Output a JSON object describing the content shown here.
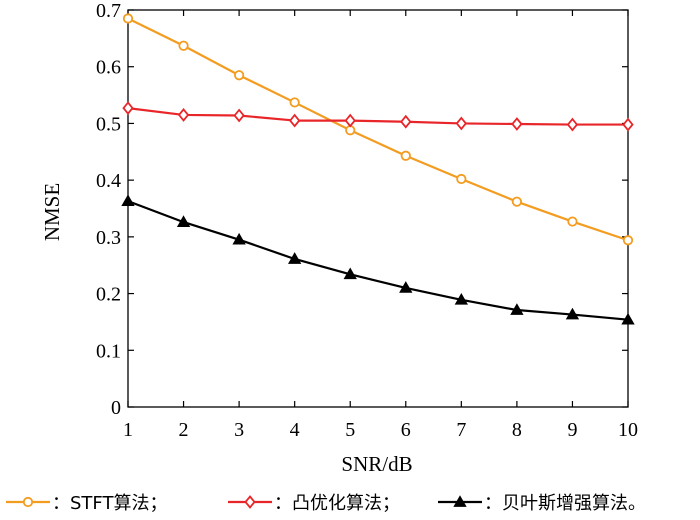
{
  "chart_data": {
    "type": "line",
    "title": "",
    "xlabel": "SNR/dB",
    "ylabel": "NMSE",
    "xlim": [
      1,
      10
    ],
    "ylim": [
      0,
      0.7
    ],
    "x_ticks": [
      1,
      2,
      3,
      4,
      5,
      6,
      7,
      8,
      9,
      10
    ],
    "y_ticks": [
      0,
      0.1,
      0.2,
      0.3,
      0.4,
      0.5,
      0.6,
      0.7
    ],
    "y_tick_labels": [
      "0",
      "0.1",
      "0.2",
      "0.3",
      "0.4",
      "0.5",
      "0.6",
      "0.7"
    ],
    "grid": false,
    "legend_position": "bottom",
    "x": [
      1,
      2,
      3,
      4,
      5,
      6,
      7,
      8,
      9,
      10
    ],
    "series": [
      {
        "name": "：STFT算法；",
        "color": "#f39c1f",
        "marker": "circle",
        "values": [
          0.685,
          0.637,
          0.585,
          0.537,
          0.488,
          0.443,
          0.402,
          0.362,
          0.327,
          0.294
        ]
      },
      {
        "name": "：凸优化算法；",
        "color": "#e8262a",
        "marker": "diamond",
        "values": [
          0.527,
          0.515,
          0.514,
          0.505,
          0.505,
          0.503,
          0.5,
          0.499,
          0.498,
          0.498
        ]
      },
      {
        "name": "：贝叶斯增强算法。",
        "color": "#000000",
        "marker": "triangle",
        "values": [
          0.363,
          0.326,
          0.295,
          0.261,
          0.234,
          0.21,
          0.189,
          0.171,
          0.163,
          0.154
        ]
      }
    ]
  }
}
